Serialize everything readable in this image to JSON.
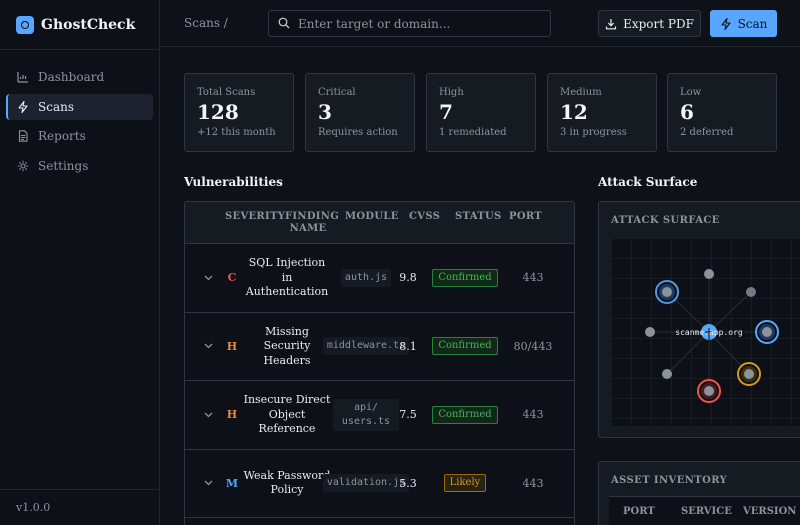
{
  "app": {
    "name": "GhostCheck",
    "version": "v1.0.0"
  },
  "sidebar": {
    "items": [
      {
        "label": "Dashboard",
        "icon": "dashboard-icon"
      },
      {
        "label": "Scans",
        "icon": "lightning-icon",
        "active": true
      },
      {
        "label": "Reports",
        "icon": "document-icon"
      },
      {
        "label": "Settings",
        "icon": "gear-icon"
      }
    ]
  },
  "header": {
    "breadcrumb": "Scans /",
    "search_placeholder": "Enter target or domain...",
    "export_label": "Export PDF",
    "scan_label": "Scan"
  },
  "stats": [
    {
      "label": "Total Scans",
      "value": "128",
      "sub": "+12 this month"
    },
    {
      "label": "Critical",
      "value": "3",
      "sub": "Requires action"
    },
    {
      "label": "High",
      "value": "7",
      "sub": "1 remediated"
    },
    {
      "label": "Medium",
      "value": "12",
      "sub": "3 in progress"
    },
    {
      "label": "Low",
      "value": "6",
      "sub": "2 deferred"
    }
  ],
  "vulnerabilities": {
    "title": "Vulnerabilities",
    "columns": [
      "SEVERITY",
      "FINDING NAME",
      "MODULE",
      "CVSS",
      "STATUS",
      "PORT"
    ],
    "rows": [
      {
        "severity": "C",
        "severity_color": "#f85149",
        "name": "SQL Injection in Authentication",
        "module": "auth.js",
        "cvss": "9.8",
        "status": "Confirmed",
        "port": "443"
      },
      {
        "severity": "H",
        "severity_color": "#f0883e",
        "name": "Missing Security Headers",
        "module": "middleware.ts",
        "cvss": "8.1",
        "status": "Confirmed",
        "port": "80/443"
      },
      {
        "severity": "H",
        "severity_color": "#f0883e",
        "name": "Insecure Direct Object Reference",
        "module": "api/ users.ts",
        "cvss": "7.5",
        "status": "Confirmed",
        "port": "443"
      },
      {
        "severity": "M",
        "severity_color": "#58a6ff",
        "name": "Weak Password Policy",
        "module": "validation.js",
        "cvss": "5.3",
        "status": "Likely",
        "port": "443"
      }
    ]
  },
  "attack_surface": {
    "title": "Attack Surface",
    "panel_title": "ATTACK SURFACE",
    "center_label": "scanme.app.org",
    "colors": {
      "critical": "#f85149",
      "medium": "#d29922",
      "info": "#58a6ff",
      "neutral": "#8b949e"
    }
  },
  "asset_inventory": {
    "title": "ASSET INVENTORY",
    "columns": [
      "PORT",
      "SERVICE",
      "VERSION"
    ]
  }
}
